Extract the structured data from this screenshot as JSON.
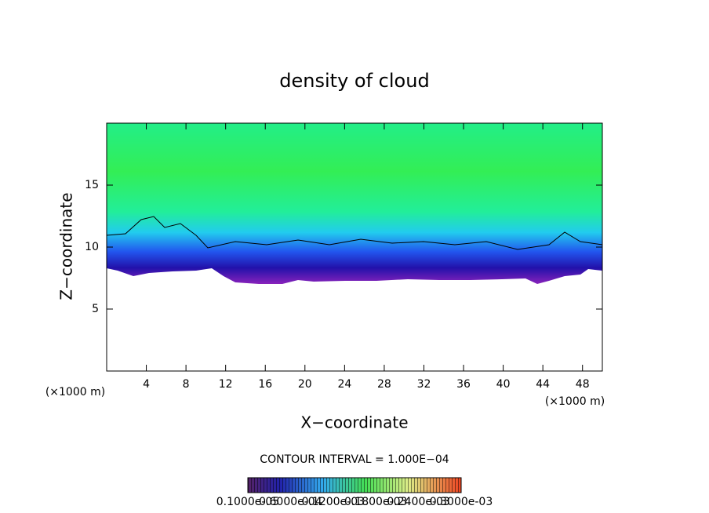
{
  "chart_data": {
    "type": "contour",
    "title": "density of cloud",
    "x_label": "X−coordinate",
    "y_label": "Z−coordinate",
    "x_unit": "(×1000 m)",
    "y_unit": "(×1000 m)",
    "xlim": [
      0,
      50
    ],
    "ylim": [
      0,
      20
    ],
    "xticks": [
      4,
      8,
      12,
      16,
      20,
      24,
      28,
      32,
      36,
      40,
      44,
      48
    ],
    "yticks": [
      5,
      10,
      15
    ],
    "contour_interval": "CONTOUR INTERVAL = 1.000E−04",
    "colorbar_labels": [
      "0.1000e-05",
      "0.6000e-04",
      "0.1200e-03",
      "0.1800e-03",
      "0.2400e-03",
      "0.3000e-03"
    ]
  }
}
